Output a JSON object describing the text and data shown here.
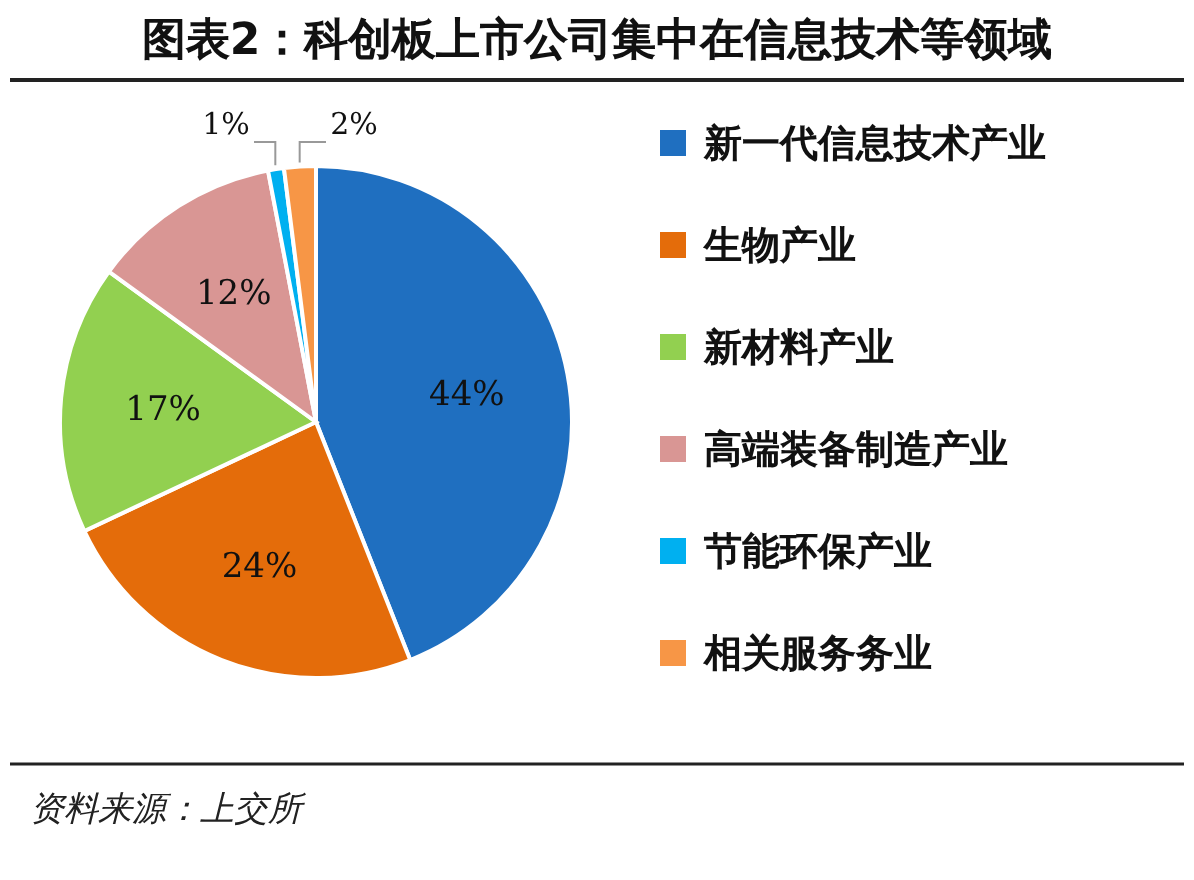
{
  "chart_data": {
    "type": "pie",
    "title": "图表2：科创板上市公司集中在信息技术等领域",
    "categories": [
      "新一代信息技术产业",
      "生物产业",
      "新材料产业",
      "高端装备制造产业",
      "节能环保产业",
      "相关服务务业"
    ],
    "values": [
      44,
      24,
      17,
      12,
      1,
      2
    ],
    "colors": [
      "#1f6fc0",
      "#e46c0a",
      "#92d050",
      "#d99694",
      "#00b0f0",
      "#f79646"
    ],
    "value_labels": [
      "44%",
      "24%",
      "17%",
      "12%",
      "1%",
      "2%"
    ],
    "legend": "right",
    "annotations": [
      "资料来源：上交所"
    ]
  }
}
